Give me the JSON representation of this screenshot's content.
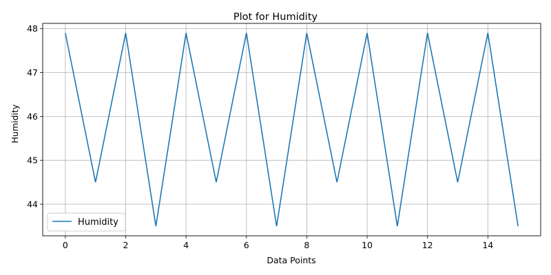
{
  "chart_data": {
    "type": "line",
    "title": "Plot for Humidity",
    "xlabel": "Data Points",
    "ylabel": "Humidity",
    "x": [
      0,
      1,
      2,
      3,
      4,
      5,
      6,
      7,
      8,
      9,
      10,
      11,
      12,
      13,
      14,
      15
    ],
    "series": [
      {
        "name": "Humidity",
        "color": "#1f77b4",
        "values": [
          47.9,
          44.5,
          47.9,
          43.5,
          47.9,
          44.5,
          47.9,
          43.5,
          47.9,
          44.5,
          47.9,
          43.5,
          47.9,
          44.5,
          47.9,
          43.5
        ]
      }
    ],
    "xlim": [
      -0.75,
      15.75
    ],
    "ylim": [
      43.28,
      48.12
    ],
    "xticks": [
      0,
      2,
      4,
      6,
      8,
      10,
      12,
      14
    ],
    "yticks": [
      44,
      45,
      46,
      47,
      48
    ],
    "grid": true,
    "legend_position": "lower-left"
  }
}
